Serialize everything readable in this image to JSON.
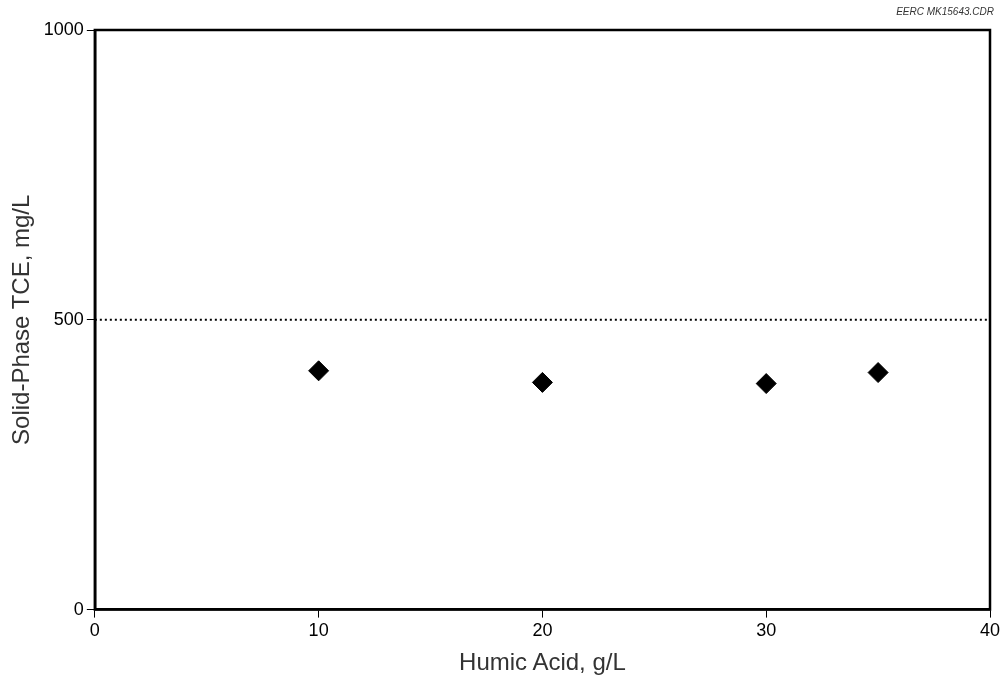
{
  "chart_data": {
    "type": "scatter",
    "xlabel": "Humic Acid, g/L",
    "ylabel": "Solid-Phase TCE, mg/L",
    "annotations": [
      "EERC MK15643.CDR"
    ],
    "x": [
      10,
      20,
      30,
      35
    ],
    "series": [
      {
        "color": "#000000",
        "values": [
          412,
          392,
          390,
          409
        ]
      }
    ],
    "marker": "diamond",
    "xlim": [
      0,
      40
    ],
    "xticks": [
      0,
      10,
      20,
      30,
      40
    ],
    "ylim": [
      0,
      1000
    ],
    "yticks": [
      0,
      500,
      1000
    ],
    "ref_lines": [
      {
        "axis": "y",
        "value": 500,
        "line_style": "dotted",
        "color": "#000000"
      }
    ],
    "grid": false,
    "legend": false
  }
}
